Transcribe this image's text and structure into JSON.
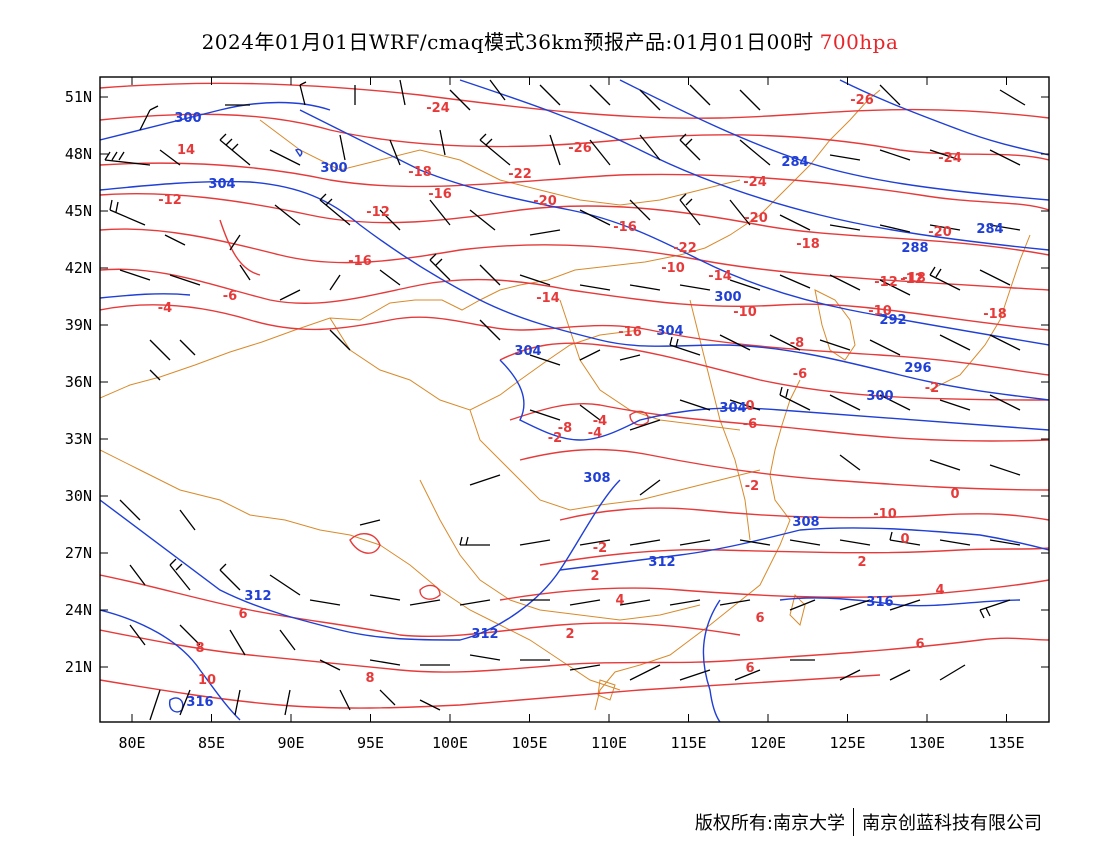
{
  "header": {
    "title": "2024年01月01日WRF/cmaq模式36km预报产品:01月01日00时",
    "level": "700hpa"
  },
  "axes": {
    "lat_labels": [
      "51N",
      "48N",
      "45N",
      "42N",
      "39N",
      "36N",
      "33N",
      "30N",
      "27N",
      "24N",
      "21N"
    ],
    "lon_labels": [
      "80E",
      "85E",
      "90E",
      "95E",
      "100E",
      "105E",
      "110E",
      "115E",
      "120E",
      "125E",
      "130E",
      "135E"
    ]
  },
  "colors": {
    "temperature": "#e63a3a",
    "geopotential": "#1f3fd6",
    "borders": "#d98a2b",
    "wind": "#000000"
  },
  "contour_labels": {
    "temperature": [
      "-24",
      "-26",
      "-26",
      "-24",
      "14",
      "-18",
      "-22",
      "-20",
      "-24",
      "-20",
      "-16",
      "-12",
      "-12",
      "-16",
      "-18",
      "-20",
      "-22",
      "-16",
      "-18",
      "-10",
      "-14",
      "-12",
      "-18",
      "-14",
      "-10",
      "-10",
      "-12",
      "-16",
      "-6",
      "-4",
      "-8",
      "-6",
      "-8",
      "-4",
      "-6",
      "-2",
      "-4",
      "-2",
      "-2",
      "0",
      "-10",
      "-2",
      "0",
      "2",
      "2",
      "4",
      "0",
      "2",
      "6",
      "4",
      "6",
      "6",
      "8",
      "6",
      "8",
      "10"
    ],
    "geopotential": [
      "300",
      "300",
      "304",
      "284",
      "284",
      "288",
      "300",
      "292",
      "304",
      "304",
      "296",
      "300",
      "304",
      "308",
      "308",
      "312",
      "312",
      "312",
      "316",
      "316"
    ]
  },
  "footer": {
    "copyright": "版权所有:南京大学",
    "company": "南京创蓝科技有限公司"
  }
}
